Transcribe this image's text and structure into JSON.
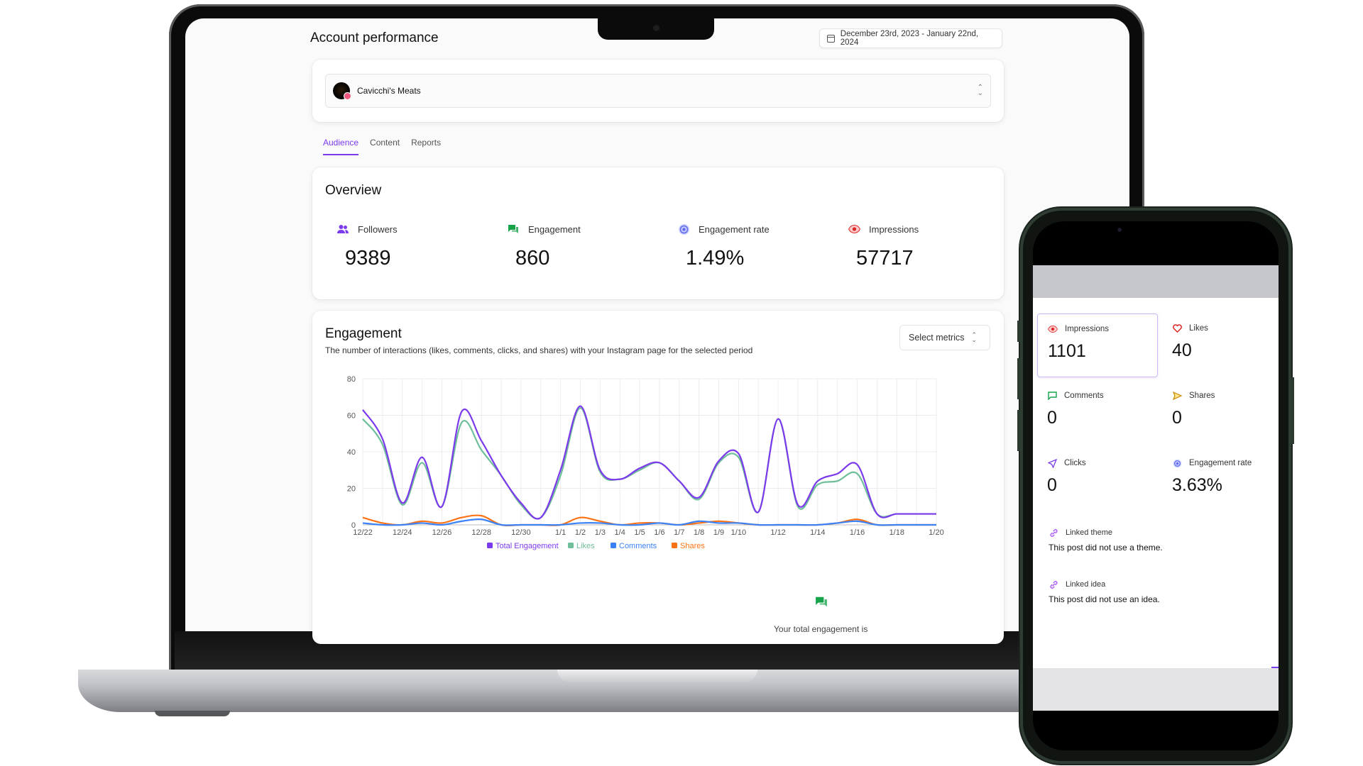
{
  "laptop": {
    "page_title": "Account performance",
    "date_range": "December 23rd, 2023 - January 22nd, 2024",
    "account_name": "Cavicchi's Meats",
    "tabs": [
      {
        "label": "Audience",
        "active": true
      },
      {
        "label": "Content",
        "active": false
      },
      {
        "label": "Reports",
        "active": false
      }
    ],
    "overview": {
      "title": "Overview",
      "metrics": [
        {
          "label": "Followers",
          "value": "9389",
          "icon": "users-icon",
          "color": "#7c3aed"
        },
        {
          "label": "Engagement",
          "value": "860",
          "icon": "chat-icon",
          "color": "#16a34a"
        },
        {
          "label": "Engagement rate",
          "value": "1.49%",
          "icon": "target-icon",
          "color": "#6366f1"
        },
        {
          "label": "Impressions",
          "value": "57717",
          "icon": "eye-icon",
          "color": "#dc2626"
        }
      ]
    },
    "engagement": {
      "title": "Engagement",
      "description": "The number of interactions (likes, comments, clicks, and shares) with your Instagram page for the selected period",
      "select_metrics_label": "Select metrics",
      "total_text": "Your total engagement is"
    }
  },
  "chart_data": {
    "type": "line",
    "title": "",
    "xlabel": "",
    "ylabel": "",
    "ylim": [
      0,
      80
    ],
    "yticks": [
      "0",
      "20",
      "40",
      "60",
      "80"
    ],
    "x_tick_labels": [
      "12/22",
      "12/24",
      "12/26",
      "12/28",
      "12/30",
      "1/1",
      "1/2",
      "1/3",
      "1/4",
      "1/5",
      "1/6",
      "1/7",
      "1/8",
      "1/9",
      "1/10",
      "1/12",
      "1/14",
      "1/16",
      "1/18",
      "1/20"
    ],
    "x": [
      "12/22",
      "12/23",
      "12/24",
      "12/25",
      "12/26",
      "12/27",
      "12/28",
      "12/29",
      "12/30",
      "12/31",
      "1/1",
      "1/2",
      "1/3",
      "1/4",
      "1/5",
      "1/6",
      "1/7",
      "1/8",
      "1/9",
      "1/10",
      "1/11",
      "1/12",
      "1/13",
      "1/14",
      "1/15",
      "1/16",
      "1/17",
      "1/18",
      "1/19",
      "1/20"
    ],
    "grid": true,
    "legend_position": "bottom",
    "series": [
      {
        "name": "Total Engagement",
        "color": "#7c3aed",
        "values": [
          63,
          47,
          12,
          37,
          10,
          62,
          46,
          27,
          12,
          4,
          30,
          65,
          30,
          25,
          31,
          34,
          24,
          15,
          35,
          39,
          7,
          58,
          11,
          24,
          28,
          33,
          6,
          6,
          6,
          6
        ]
      },
      {
        "name": "Likes",
        "color": "#6fbf9a",
        "values": [
          58,
          44,
          11,
          34,
          10,
          56,
          41,
          27,
          11,
          4,
          27,
          64,
          29,
          25,
          30,
          34,
          24,
          14,
          34,
          37,
          7,
          58,
          10,
          22,
          24,
          28,
          6,
          6,
          6,
          6
        ]
      },
      {
        "name": "Comments",
        "color": "#3b82f6",
        "values": [
          1,
          0,
          0,
          1,
          0,
          2,
          3,
          0,
          0,
          0,
          0,
          1,
          1,
          0,
          0,
          1,
          0,
          2,
          1,
          1,
          0,
          0,
          0,
          0,
          1,
          2,
          0,
          0,
          0,
          0
        ]
      },
      {
        "name": "Shares",
        "color": "#f97316",
        "values": [
          4,
          1,
          0,
          2,
          1,
          4,
          5,
          0,
          0,
          0,
          0,
          4,
          2,
          0,
          1,
          1,
          0,
          1,
          2,
          1,
          0,
          0,
          0,
          0,
          1,
          3,
          0,
          0,
          0,
          0
        ]
      }
    ]
  },
  "phone": {
    "stats": [
      {
        "label": "Impressions",
        "value": "1101",
        "icon": "eye-icon",
        "color": "#dc2626"
      },
      {
        "label": "Likes",
        "value": "40",
        "icon": "heart-icon",
        "color": "#dc2626"
      },
      {
        "label": "Comments",
        "value": "0",
        "icon": "comment-icon",
        "color": "#16a34a"
      },
      {
        "label": "Shares",
        "value": "0",
        "icon": "send-icon",
        "color": "#ca8a04"
      },
      {
        "label": "Clicks",
        "value": "0",
        "icon": "cursor-icon",
        "color": "#7c3aed"
      },
      {
        "label": "Engagement rate",
        "value": "3.63%",
        "icon": "target-icon",
        "color": "#6366f1"
      }
    ],
    "linked_theme": {
      "label": "Linked theme",
      "note": "This post did not use a theme."
    },
    "linked_idea": {
      "label": "Linked idea",
      "note": "This post did not use an idea."
    }
  }
}
